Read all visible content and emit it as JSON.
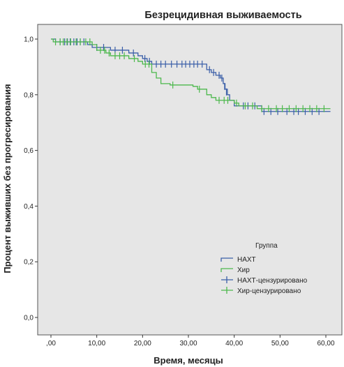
{
  "chart_data": {
    "type": "line",
    "title": "Безрецидивная выживаемость",
    "xlabel": "Время, месяцы",
    "ylabel": "Процент выживших без прогресирования",
    "xlim": [
      0,
      60
    ],
    "ylim": [
      0,
      1.0
    ],
    "x_ticks": [
      ",00",
      "10,00",
      "20,00",
      "30,00",
      "40,00",
      "50,00",
      "60,00"
    ],
    "x_tick_values": [
      0,
      10,
      20,
      30,
      40,
      50,
      60
    ],
    "y_ticks": [
      "0,0",
      "0,2",
      "0,4",
      "0,6",
      "0,8",
      "1,0"
    ],
    "y_tick_values": [
      0,
      0.2,
      0.4,
      0.6,
      0.8,
      1.0
    ],
    "grid": false,
    "background": "#e6e6e6",
    "legend": {
      "title": "Группа",
      "placement": "bottom-right",
      "entries": [
        "НАХТ",
        "Хир",
        "НАХТ-цензурировано",
        "Хир-цензурировано"
      ]
    },
    "series": [
      {
        "name": "НАХТ",
        "color": "#3b5fa8",
        "steps": [
          [
            0,
            1.0
          ],
          [
            1,
            0.99
          ],
          [
            8,
            0.98
          ],
          [
            9,
            0.97
          ],
          [
            13,
            0.96
          ],
          [
            17,
            0.95
          ],
          [
            19,
            0.94
          ],
          [
            20,
            0.93
          ],
          [
            21,
            0.92
          ],
          [
            22,
            0.91
          ],
          [
            34,
            0.89
          ],
          [
            35,
            0.88
          ],
          [
            36,
            0.87
          ],
          [
            37,
            0.86
          ],
          [
            37.6,
            0.84
          ],
          [
            38,
            0.82
          ],
          [
            38.5,
            0.8
          ],
          [
            39,
            0.78
          ],
          [
            40,
            0.76
          ],
          [
            46,
            0.74
          ],
          [
            61,
            0.74
          ]
        ],
        "censored": [
          [
            2,
            0.99
          ],
          [
            3,
            0.99
          ],
          [
            3.6,
            0.99
          ],
          [
            4.2,
            0.99
          ],
          [
            5,
            0.99
          ],
          [
            5.7,
            0.99
          ],
          [
            6.4,
            0.99
          ],
          [
            7.2,
            0.99
          ],
          [
            10,
            0.97
          ],
          [
            11.5,
            0.97
          ],
          [
            14,
            0.96
          ],
          [
            15.6,
            0.96
          ],
          [
            18,
            0.95
          ],
          [
            20.5,
            0.93
          ],
          [
            21.5,
            0.92
          ],
          [
            23,
            0.91
          ],
          [
            24,
            0.91
          ],
          [
            25,
            0.91
          ],
          [
            26.3,
            0.91
          ],
          [
            27.5,
            0.91
          ],
          [
            28.6,
            0.91
          ],
          [
            29.4,
            0.91
          ],
          [
            30.3,
            0.91
          ],
          [
            31.2,
            0.91
          ],
          [
            32,
            0.91
          ],
          [
            33,
            0.91
          ],
          [
            34.6,
            0.89
          ],
          [
            35.5,
            0.88
          ],
          [
            36.7,
            0.87
          ],
          [
            37.3,
            0.86
          ],
          [
            37.9,
            0.83
          ],
          [
            38.3,
            0.81
          ],
          [
            42,
            0.76
          ],
          [
            43,
            0.76
          ],
          [
            44.5,
            0.76
          ],
          [
            46.5,
            0.74
          ],
          [
            48,
            0.74
          ],
          [
            49.5,
            0.74
          ],
          [
            51.5,
            0.74
          ],
          [
            53,
            0.74
          ],
          [
            54,
            0.74
          ],
          [
            55.5,
            0.74
          ],
          [
            57,
            0.74
          ],
          [
            58.5,
            0.74
          ]
        ]
      },
      {
        "name": "Хир",
        "color": "#4cb84c",
        "steps": [
          [
            0,
            1.0
          ],
          [
            0.5,
            0.99
          ],
          [
            9,
            0.98
          ],
          [
            10,
            0.96
          ],
          [
            12,
            0.95
          ],
          [
            13,
            0.94
          ],
          [
            17,
            0.93
          ],
          [
            19,
            0.92
          ],
          [
            20,
            0.91
          ],
          [
            22,
            0.88
          ],
          [
            23,
            0.86
          ],
          [
            24,
            0.84
          ],
          [
            26,
            0.835
          ],
          [
            31,
            0.83
          ],
          [
            32,
            0.82
          ],
          [
            34,
            0.8
          ],
          [
            35,
            0.79
          ],
          [
            36,
            0.78
          ],
          [
            40,
            0.77
          ],
          [
            41,
            0.76
          ],
          [
            45,
            0.75
          ],
          [
            61,
            0.75
          ]
        ],
        "censored": [
          [
            1,
            0.99
          ],
          [
            2,
            0.99
          ],
          [
            2.7,
            0.99
          ],
          [
            3.5,
            0.99
          ],
          [
            4.3,
            0.99
          ],
          [
            5.5,
            0.99
          ],
          [
            6.4,
            0.99
          ],
          [
            7.6,
            0.99
          ],
          [
            8.5,
            0.99
          ],
          [
            10.8,
            0.96
          ],
          [
            11.7,
            0.96
          ],
          [
            12.7,
            0.95
          ],
          [
            14,
            0.94
          ],
          [
            15,
            0.94
          ],
          [
            16,
            0.94
          ],
          [
            18.2,
            0.93
          ],
          [
            20.6,
            0.91
          ],
          [
            21.4,
            0.91
          ],
          [
            26.6,
            0.835
          ],
          [
            32.4,
            0.82
          ],
          [
            36.7,
            0.78
          ],
          [
            37.8,
            0.78
          ],
          [
            38.6,
            0.78
          ],
          [
            40.5,
            0.77
          ],
          [
            42.4,
            0.76
          ],
          [
            44,
            0.76
          ],
          [
            46,
            0.75
          ],
          [
            47.5,
            0.75
          ],
          [
            49.2,
            0.75
          ],
          [
            50.5,
            0.75
          ],
          [
            52,
            0.75
          ],
          [
            53.5,
            0.75
          ],
          [
            55,
            0.75
          ],
          [
            56.5,
            0.75
          ],
          [
            58,
            0.75
          ],
          [
            59.6,
            0.75
          ]
        ]
      }
    ]
  }
}
